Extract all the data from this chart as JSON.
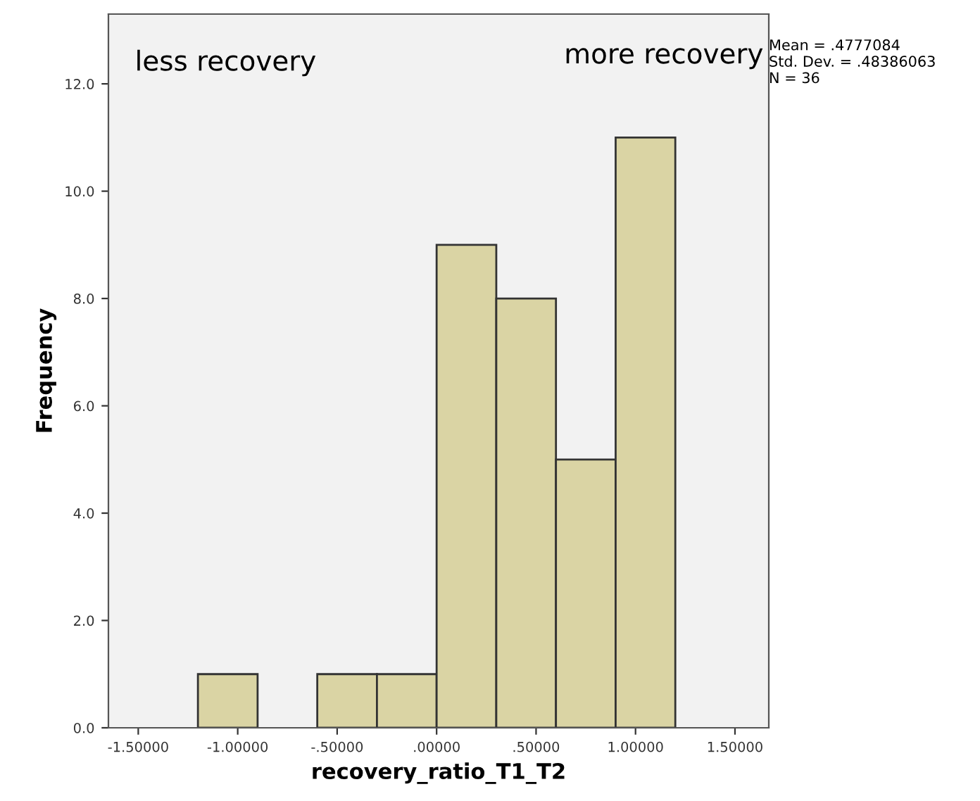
{
  "chart_data": {
    "type": "histogram",
    "xlabel": "recovery_ratio_T1_T2",
    "ylabel": "Frequency",
    "bins": [
      -1.2,
      -0.9,
      -0.6,
      -0.3,
      0.0,
      0.3,
      0.6,
      0.9,
      1.2
    ],
    "values": [
      1,
      0,
      1,
      1,
      9,
      8,
      5,
      11
    ],
    "color": "#dad4a4",
    "xlim": [
      -1.65,
      1.67
    ],
    "ylim": [
      0,
      13.3
    ],
    "xticks": [
      {
        "value": -1.5,
        "label": "-1.50000"
      },
      {
        "value": -1.0,
        "label": "-1.00000"
      },
      {
        "value": -0.5,
        "label": "-.50000"
      },
      {
        "value": 0.0,
        "label": ".00000"
      },
      {
        "value": 0.5,
        "label": ".50000"
      },
      {
        "value": 1.0,
        "label": "1.00000"
      },
      {
        "value": 1.5,
        "label": "1.50000"
      }
    ],
    "yticks": [
      {
        "value": 0,
        "label": "0.0"
      },
      {
        "value": 2,
        "label": "2.0"
      },
      {
        "value": 4,
        "label": "4.0"
      },
      {
        "value": 6,
        "label": "6.0"
      },
      {
        "value": 8,
        "label": "8.0"
      },
      {
        "value": 10,
        "label": "10.0"
      },
      {
        "value": 12,
        "label": "12.0"
      }
    ],
    "grid": false,
    "legend": false,
    "annotations": [
      "less recovery",
      "more recovery",
      "Mean = .4777084\nStd. Dev. = .48386063\nN = 36"
    ]
  }
}
